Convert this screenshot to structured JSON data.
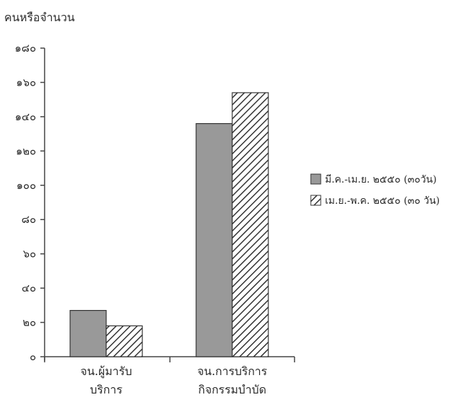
{
  "chart_data": {
    "type": "bar",
    "ylabel": "คนหรือจำนวน",
    "ylim": [
      0,
      180
    ],
    "yticks": [
      0,
      20,
      40,
      60,
      80,
      100,
      120,
      140,
      160,
      180
    ],
    "ytick_labels": [
      "๐",
      "๒๐",
      "๔๐",
      "๖๐",
      "๘๐",
      "๑๐๐",
      "๑๒๐",
      "๑๔๐",
      "๑๖๐",
      "๑๘๐"
    ],
    "categories": [
      [
        "จน.ผู้มารับ",
        "บริการ"
      ],
      [
        "จน.การบริการ",
        "กิจกรรมบำบัด"
      ]
    ],
    "series": [
      {
        "name": "มี.ค.-เม.ย. ๒๕๕๐ (๓๐วัน)",
        "values": [
          27,
          136
        ],
        "fill": "#999999",
        "pattern": "solid"
      },
      {
        "name": "เม.ย.-พ.ค. ๒๕๕๐ (๓๐ วัน)",
        "values": [
          18,
          154
        ],
        "fill": "#ffffff",
        "pattern": "diagonal-hatch"
      }
    ],
    "legend_position": "right",
    "grid": false
  }
}
